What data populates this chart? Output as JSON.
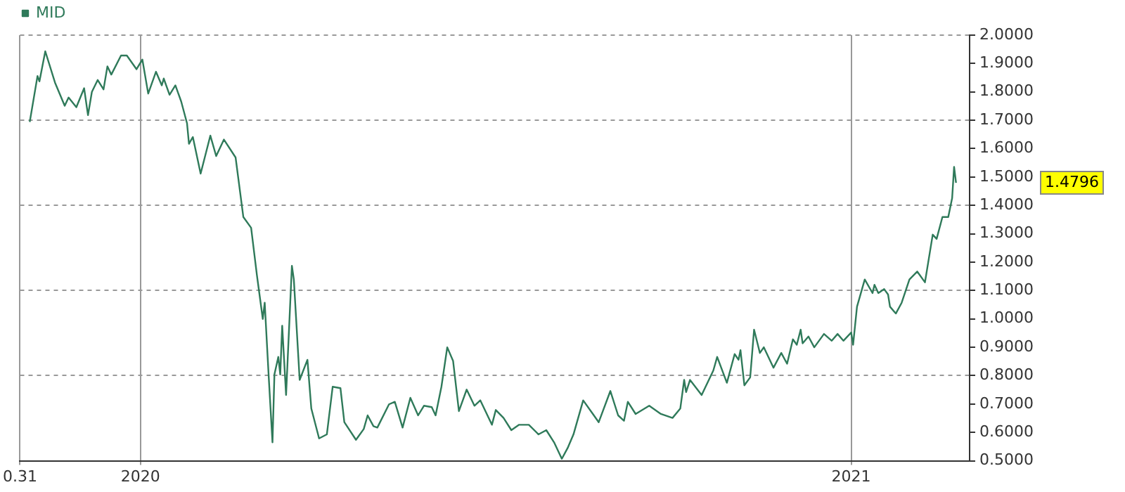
{
  "chart_data": {
    "type": "line",
    "legend": "top left",
    "grid": true,
    "marker": "none",
    "line_style": "solid",
    "xlim": [
      "2019-10-31",
      "2021-03-03"
    ],
    "xticks": [
      {
        "value": "2019-10-31",
        "label": "0.31"
      },
      {
        "value": "2020-01-01",
        "label": "2020"
      },
      {
        "value": "2021-01-01",
        "label": "2021"
      }
    ],
    "ylim": [
      0.5,
      2.0
    ],
    "yticks": [
      {
        "value": 0.5,
        "label": "0.5000"
      },
      {
        "value": 0.6,
        "label": "0.6000"
      },
      {
        "value": 0.7,
        "label": "0.7000"
      },
      {
        "value": 0.8,
        "label": "0.8000"
      },
      {
        "value": 0.9,
        "label": "0.9000"
      },
      {
        "value": 1.0,
        "label": "1.0000"
      },
      {
        "value": 1.1,
        "label": "1.1000"
      },
      {
        "value": 1.2,
        "label": "1.2000"
      },
      {
        "value": 1.3,
        "label": "1.3000"
      },
      {
        "value": 1.4,
        "label": "1.4000"
      },
      {
        "value": 1.5,
        "label": "1.5000"
      },
      {
        "value": 1.6,
        "label": "1.6000"
      },
      {
        "value": 1.7,
        "label": "1.7000"
      },
      {
        "value": 1.8,
        "label": "1.8000"
      },
      {
        "value": 1.9,
        "label": "1.9000"
      },
      {
        "value": 2.0,
        "label": "2.0000"
      }
    ],
    "annotations": [
      "1.4796"
    ],
    "series": [
      {
        "name": "MID",
        "color": "#2f7a5a",
        "x": [
          "2019-11-05",
          "2019-11-09",
          "2019-11-10",
          "2019-11-13",
          "2019-11-18",
          "2019-11-23",
          "2019-11-25",
          "2019-11-29",
          "2019-12-03",
          "2019-12-05",
          "2019-12-07",
          "2019-12-10",
          "2019-12-13",
          "2019-12-15",
          "2019-12-17",
          "2019-12-22",
          "2019-12-25",
          "2019-12-30",
          "2020-01-02",
          "2020-01-05",
          "2020-01-09",
          "2020-01-12",
          "2020-01-13",
          "2020-01-16",
          "2020-01-19",
          "2020-01-22",
          "2020-01-25",
          "2020-01-26",
          "2020-01-28",
          "2020-02-01",
          "2020-02-06",
          "2020-02-09",
          "2020-02-13",
          "2020-02-19",
          "2020-02-23",
          "2020-02-27",
          "2020-03-01",
          "2020-03-04",
          "2020-03-05",
          "2020-03-07",
          "2020-03-09",
          "2020-03-10",
          "2020-03-12",
          "2020-03-13",
          "2020-03-14",
          "2020-03-16",
          "2020-03-19",
          "2020-03-20",
          "2020-03-23",
          "2020-03-27",
          "2020-03-29",
          "2020-04-02",
          "2020-04-06",
          "2020-04-09",
          "2020-04-13",
          "2020-04-15",
          "2020-04-21",
          "2020-04-25",
          "2020-04-27",
          "2020-04-30",
          "2020-05-02",
          "2020-05-08",
          "2020-05-11",
          "2020-05-15",
          "2020-05-19",
          "2020-05-23",
          "2020-05-26",
          "2020-05-30",
          "2020-06-01",
          "2020-06-04",
          "2020-06-07",
          "2020-06-10",
          "2020-06-13",
          "2020-06-17",
          "2020-06-21",
          "2020-06-24",
          "2020-06-30",
          "2020-07-02",
          "2020-07-06",
          "2020-07-10",
          "2020-07-14",
          "2020-07-19",
          "2020-07-24",
          "2020-07-28",
          "2020-08-01",
          "2020-08-05",
          "2020-08-08",
          "2020-08-11",
          "2020-08-16",
          "2020-08-21",
          "2020-08-24",
          "2020-08-30",
          "2020-09-03",
          "2020-09-06",
          "2020-09-08",
          "2020-09-12",
          "2020-09-19",
          "2020-09-25",
          "2020-10-01",
          "2020-10-05",
          "2020-10-07",
          "2020-10-08",
          "2020-10-10",
          "2020-10-16",
          "2020-10-22",
          "2020-10-24",
          "2020-10-29",
          "2020-11-02",
          "2020-11-04",
          "2020-11-05",
          "2020-11-07",
          "2020-11-10",
          "2020-11-12",
          "2020-11-15",
          "2020-11-17",
          "2020-11-22",
          "2020-11-26",
          "2020-11-29",
          "2020-12-02",
          "2020-12-04",
          "2020-12-06",
          "2020-12-07",
          "2020-12-10",
          "2020-12-13",
          "2020-12-18",
          "2020-12-22",
          "2020-12-25",
          "2020-12-28",
          "2021-01-01",
          "2021-01-02",
          "2021-01-04",
          "2021-01-08",
          "2021-01-12",
          "2021-01-13",
          "2021-01-15",
          "2021-01-18",
          "2021-01-20",
          "2021-01-21",
          "2021-01-24",
          "2021-01-27",
          "2021-01-31",
          "2021-02-04",
          "2021-02-08",
          "2021-02-12",
          "2021-02-14",
          "2021-02-17",
          "2021-02-20",
          "2021-02-22",
          "2021-02-23",
          "2021-02-24"
        ],
        "values": [
          1.694,
          1.856,
          1.837,
          1.943,
          1.833,
          1.751,
          1.78,
          1.746,
          1.813,
          1.718,
          1.8,
          1.842,
          1.809,
          1.89,
          1.861,
          1.928,
          1.928,
          1.88,
          1.914,
          1.794,
          1.871,
          1.823,
          1.847,
          1.79,
          1.823,
          1.766,
          1.689,
          1.617,
          1.641,
          1.512,
          1.646,
          1.574,
          1.632,
          1.569,
          1.359,
          1.321,
          1.153,
          1.0,
          1.057,
          0.804,
          0.565,
          0.804,
          0.866,
          0.804,
          0.976,
          0.732,
          1.187,
          1.139,
          0.785,
          0.856,
          0.684,
          0.579,
          0.593,
          0.761,
          0.756,
          0.636,
          0.574,
          0.612,
          0.66,
          0.622,
          0.617,
          0.699,
          0.708,
          0.617,
          0.722,
          0.66,
          0.694,
          0.689,
          0.66,
          0.761,
          0.9,
          0.852,
          0.675,
          0.751,
          0.694,
          0.713,
          0.627,
          0.679,
          0.651,
          0.608,
          0.627,
          0.627,
          0.593,
          0.608,
          0.565,
          0.507,
          0.545,
          0.593,
          0.713,
          0.665,
          0.636,
          0.746,
          0.66,
          0.641,
          0.708,
          0.665,
          0.694,
          0.665,
          0.651,
          0.684,
          0.785,
          0.742,
          0.785,
          0.732,
          0.818,
          0.866,
          0.775,
          0.876,
          0.856,
          0.89,
          0.766,
          0.794,
          0.962,
          0.88,
          0.9,
          0.828,
          0.88,
          0.842,
          0.928,
          0.909,
          0.962,
          0.914,
          0.938,
          0.9,
          0.947,
          0.923,
          0.947,
          0.923,
          0.952,
          0.909,
          1.043,
          1.139,
          1.091,
          1.12,
          1.091,
          1.105,
          1.086,
          1.043,
          1.019,
          1.057,
          1.139,
          1.167,
          1.129,
          1.297,
          1.282,
          1.359,
          1.359,
          1.426,
          1.536,
          1.4796
        ]
      }
    ]
  }
}
